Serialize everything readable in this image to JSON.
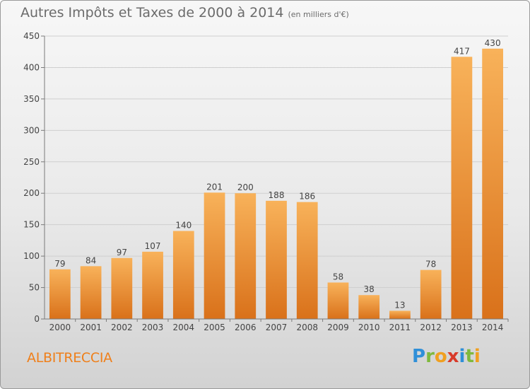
{
  "title": "Autres Impôts et Taxes de 2000 à 2014",
  "unit_label": "(en milliers d'€)",
  "city": "ALBITRECCIA",
  "logo": {
    "letters": [
      "P",
      "r",
      "o",
      "x",
      "i",
      "t",
      "i"
    ],
    "colors": [
      "#2f8fd8",
      "#7fb93d",
      "#f0a020",
      "#d83a2a",
      "#2f8fd8",
      "#7fb93d",
      "#f0a020"
    ]
  },
  "colors": {
    "bar": "#ee8a25",
    "bar_light": "#f8b25a",
    "axis": "#7a7a7a",
    "text": "#444444"
  },
  "chart_data": {
    "type": "bar",
    "categories": [
      "2000",
      "2001",
      "2002",
      "2003",
      "2004",
      "2005",
      "2006",
      "2007",
      "2008",
      "2009",
      "2010",
      "2011",
      "2012",
      "2013",
      "2014"
    ],
    "values": [
      79,
      84,
      97,
      107,
      140,
      201,
      200,
      188,
      186,
      58,
      38,
      13,
      78,
      417,
      430
    ],
    "ylim": [
      0,
      450
    ],
    "yticks": [
      0,
      50,
      100,
      150,
      200,
      250,
      300,
      350,
      400,
      450
    ],
    "grid": true
  }
}
